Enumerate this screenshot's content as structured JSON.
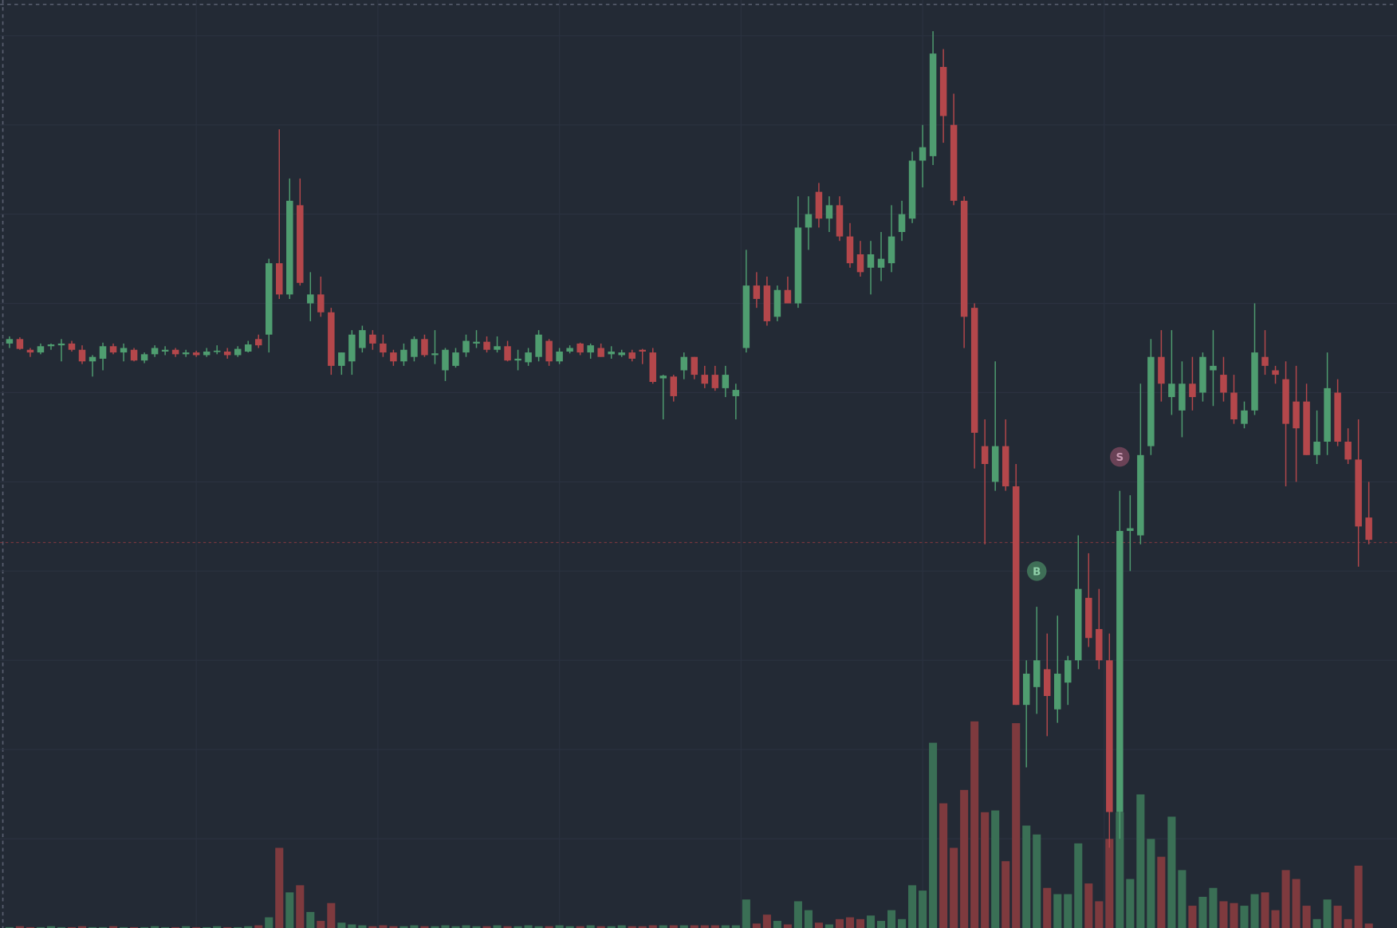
{
  "chart_data": {
    "type": "candlestick",
    "grid": true,
    "xlim": [
      -0.9,
      133.7
    ],
    "ylim": [
      0,
      104
    ],
    "y2lim": [
      0,
      250
    ],
    "xticks": [
      18,
      35.5,
      53,
      70.5,
      88,
      105.5
    ],
    "yticks": [
      10,
      20,
      30,
      40,
      50,
      60,
      70,
      80,
      90,
      100
    ],
    "colors": {
      "up": "#4f9d70",
      "down": "#b4474b",
      "volume_up": "#3a6f55",
      "volume_down": "#7e3a3e",
      "marker_buy": "#3f6f57",
      "marker_sell": "#6a4256",
      "price_line": "#8a3a40"
    },
    "price_line": 43.2,
    "candles": [
      [
        65.5,
        66.3,
        65,
        66
      ],
      [
        66,
        66.2,
        64.8,
        64.9
      ],
      [
        64.8,
        65,
        64,
        64.5
      ],
      [
        64.5,
        65.5,
        64.3,
        65.2
      ],
      [
        65.2,
        65.5,
        64.8,
        65.4
      ],
      [
        65.3,
        66,
        63.5,
        65.5
      ],
      [
        65.5,
        65.8,
        64.6,
        64.8
      ],
      [
        64.8,
        65.3,
        63.2,
        63.5
      ],
      [
        63.5,
        64.2,
        61.8,
        64
      ],
      [
        63.8,
        65.6,
        62.5,
        65.2
      ],
      [
        65.2,
        65.5,
        64.3,
        64.5
      ],
      [
        64.5,
        65.5,
        63.5,
        65
      ],
      [
        64.8,
        65,
        63.5,
        63.6
      ],
      [
        63.6,
        64.5,
        63.3,
        64.3
      ],
      [
        64.3,
        65.3,
        64,
        65
      ],
      [
        64.6,
        65.2,
        64.2,
        64.8
      ],
      [
        64.8,
        65,
        64,
        64.3
      ],
      [
        64.3,
        64.8,
        64,
        64.5
      ],
      [
        64.5,
        64.7,
        64,
        64.2
      ],
      [
        64.2,
        65,
        64,
        64.6
      ],
      [
        64.6,
        65.3,
        64.3,
        64.7
      ],
      [
        64.6,
        65,
        63.8,
        64.2
      ],
      [
        64.2,
        65.2,
        64,
        64.9
      ],
      [
        64.6,
        65.8,
        64.5,
        65.4
      ],
      [
        66,
        66.5,
        65,
        65.3
      ],
      [
        66.5,
        75,
        64.5,
        74.5
      ],
      [
        74.5,
        89.5,
        70.5,
        71
      ],
      [
        71,
        84,
        70.5,
        81.5
      ],
      [
        81,
        84,
        72,
        72.3
      ],
      [
        70,
        73.5,
        68,
        71
      ],
      [
        71,
        73,
        68.5,
        69
      ],
      [
        69,
        69.5,
        62,
        63
      ],
      [
        63,
        64.5,
        62,
        64.5
      ],
      [
        63.5,
        67,
        62,
        66.5
      ],
      [
        65,
        67.5,
        64.5,
        67
      ],
      [
        66.5,
        67,
        64.8,
        65.5
      ],
      [
        65.5,
        66.5,
        64,
        64.5
      ],
      [
        64.5,
        64.8,
        63,
        63.5
      ],
      [
        63.5,
        65.5,
        63,
        64.8
      ],
      [
        64,
        66.3,
        63.5,
        66
      ],
      [
        66,
        66.5,
        64,
        64.2
      ],
      [
        64.2,
        67,
        63.2,
        64.4
      ],
      [
        62.5,
        65,
        61.3,
        64.8
      ],
      [
        63,
        65,
        62.8,
        64.5
      ],
      [
        64.5,
        66.5,
        64,
        65.8
      ],
      [
        65.5,
        67,
        65,
        65.7
      ],
      [
        65.7,
        66.3,
        64.5,
        64.8
      ],
      [
        64.8,
        66.3,
        64.5,
        65.2
      ],
      [
        65.2,
        65.8,
        63.5,
        63.6
      ],
      [
        63.6,
        64.8,
        62.5,
        63.8
      ],
      [
        63.4,
        65,
        63,
        64.5
      ],
      [
        64,
        67,
        63.5,
        66.5
      ],
      [
        65.8,
        66,
        63,
        63.5
      ],
      [
        63.5,
        65,
        63.2,
        64.6
      ],
      [
        64.6,
        65.3,
        64.4,
        65
      ],
      [
        65.5,
        65.6,
        64.2,
        64.5
      ],
      [
        64.5,
        65.5,
        63.8,
        65.3
      ],
      [
        65,
        65.5,
        64,
        64
      ],
      [
        64.3,
        65.2,
        63.8,
        64.6
      ],
      [
        64.2,
        64.8,
        64,
        64.5
      ],
      [
        64.5,
        64.8,
        63.5,
        63.8
      ],
      [
        64.8,
        64.9,
        63.2,
        64.6
      ],
      [
        64.5,
        65,
        61,
        61.2
      ],
      [
        61.6,
        62,
        57,
        61.9
      ],
      [
        61.8,
        62,
        59,
        59.6
      ],
      [
        62.5,
        64.5,
        61.5,
        64
      ],
      [
        64,
        64,
        61.5,
        62
      ],
      [
        62,
        63,
        60.5,
        61
      ],
      [
        62,
        63,
        60.2,
        60.5
      ],
      [
        60.5,
        63,
        59.5,
        62
      ],
      [
        59.6,
        61,
        57,
        60.3
      ],
      [
        65,
        76,
        64.5,
        72
      ],
      [
        72,
        73.5,
        69.5,
        70.5
      ],
      [
        72,
        73,
        67.5,
        68
      ],
      [
        68.5,
        72,
        68,
        71.5
      ],
      [
        71.5,
        73,
        70,
        70
      ],
      [
        70,
        82,
        69.5,
        78.5
      ],
      [
        78.5,
        82,
        76,
        80
      ],
      [
        82.5,
        83.5,
        78.5,
        79.5
      ],
      [
        79.5,
        82,
        78,
        81
      ],
      [
        81,
        82,
        77,
        77.5
      ],
      [
        77.5,
        79,
        74,
        74.5
      ],
      [
        75.5,
        77,
        73,
        73.5
      ],
      [
        74,
        77,
        71,
        75.5
      ],
      [
        74,
        78,
        72.5,
        75
      ],
      [
        74.5,
        81,
        73.5,
        77.5
      ],
      [
        78,
        81.5,
        77,
        80
      ],
      [
        79.5,
        87,
        79,
        86
      ],
      [
        86,
        90,
        83,
        87.5
      ],
      [
        86.5,
        100.5,
        85.5,
        98
      ],
      [
        96.5,
        98.5,
        88,
        91
      ],
      [
        90,
        93.5,
        81,
        81.5
      ],
      [
        81.5,
        82,
        65,
        68.5
      ],
      [
        69.5,
        70,
        51.5,
        55.5
      ],
      [
        54,
        57,
        43,
        52
      ],
      [
        50,
        63.5,
        49,
        54
      ],
      [
        54,
        57,
        49,
        49.5
      ],
      [
        49.5,
        52,
        25,
        25
      ],
      [
        25,
        30,
        18,
        28.5
      ],
      [
        27,
        36,
        24,
        30
      ],
      [
        29,
        33,
        21.5,
        26
      ],
      [
        24.5,
        35,
        23,
        28.5
      ],
      [
        27.5,
        30.5,
        25,
        30
      ],
      [
        30,
        44,
        29,
        38
      ],
      [
        37,
        42,
        31.5,
        32.5
      ],
      [
        33.5,
        38,
        29,
        30
      ],
      [
        30,
        33,
        9,
        13
      ],
      [
        13,
        49,
        10,
        44.5
      ],
      [
        44.5,
        48.5,
        40,
        44.8
      ],
      [
        44,
        61,
        43,
        53
      ],
      [
        54,
        66,
        53,
        64
      ],
      [
        64,
        67,
        59,
        61
      ],
      [
        59.5,
        67,
        57.5,
        61
      ],
      [
        58,
        63.5,
        55,
        61
      ],
      [
        61,
        64,
        58,
        59.5
      ],
      [
        60,
        64.5,
        59,
        64
      ],
      [
        62.5,
        67,
        58.5,
        63
      ],
      [
        62,
        64,
        59,
        60
      ],
      [
        60,
        62,
        56.5,
        57
      ],
      [
        56.5,
        59,
        56,
        58
      ],
      [
        58,
        70,
        57.5,
        64.5
      ],
      [
        64,
        67,
        62,
        63
      ],
      [
        62.5,
        63,
        61,
        62
      ],
      [
        61.5,
        63.5,
        49.5,
        56.5
      ],
      [
        59,
        63,
        50,
        56
      ],
      [
        59,
        61,
        53,
        53
      ],
      [
        53,
        58,
        52,
        54.5
      ],
      [
        54.5,
        64.5,
        53,
        60.5
      ],
      [
        60,
        61.5,
        54,
        54.5
      ],
      [
        54.5,
        56,
        52,
        52.5
      ],
      [
        52.5,
        57,
        40.5,
        45
      ],
      [
        46,
        50,
        43,
        43.5
      ]
    ],
    "volume": [
      1,
      2,
      1,
      1,
      2,
      1,
      1,
      2,
      1,
      1,
      2,
      1,
      1,
      1,
      2,
      1,
      1,
      2,
      1,
      1,
      2,
      1,
      1,
      2,
      3,
      12,
      90,
      40,
      48,
      18,
      8,
      28,
      6,
      4,
      3,
      2,
      3,
      2,
      2,
      3,
      2,
      2,
      3,
      2,
      3,
      2,
      2,
      3,
      2,
      2,
      3,
      2,
      2,
      3,
      2,
      2,
      3,
      2,
      2,
      3,
      2,
      2,
      3,
      3,
      3,
      3,
      3,
      3,
      3,
      3,
      3,
      32,
      5,
      15,
      8,
      4,
      30,
      20,
      6,
      4,
      10,
      12,
      10,
      14,
      8,
      20,
      10,
      48,
      42,
      208,
      140,
      90,
      155,
      232,
      130,
      132,
      75,
      230,
      115,
      105,
      45,
      38,
      38,
      95,
      50,
      30,
      100,
      130,
      55,
      150,
      100,
      80,
      125,
      65,
      25,
      35,
      45,
      30,
      28,
      25,
      38,
      40,
      20,
      65,
      55,
      25,
      10,
      32,
      25,
      10,
      70,
      5
    ],
    "markers": [
      {
        "label": "B",
        "x": 99,
        "value": 40
      },
      {
        "label": "S",
        "x": 107,
        "value": 52.8
      }
    ]
  }
}
